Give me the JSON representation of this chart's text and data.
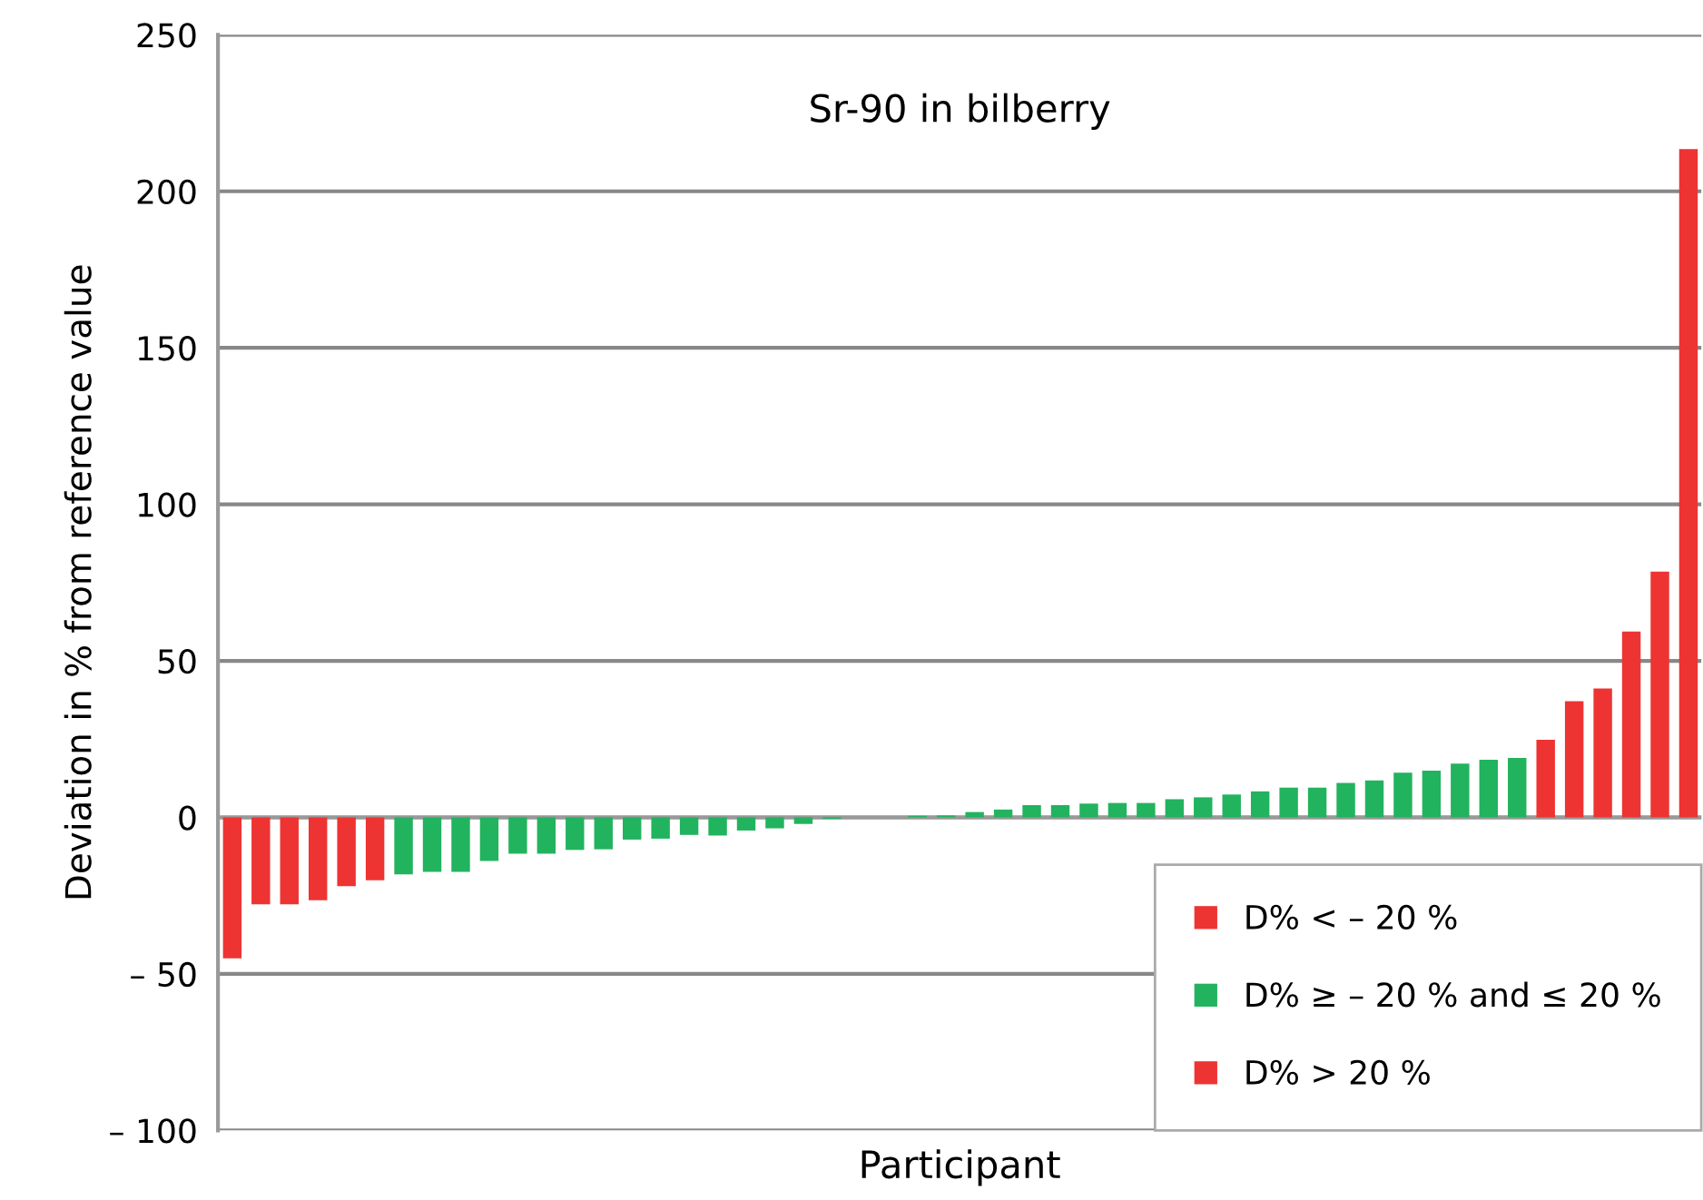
{
  "chart_data": {
    "type": "bar",
    "title": "Sr-90 in bilberry",
    "xlabel": "Participant",
    "ylabel": "Deviation in % from reference value",
    "categories": [
      null,
      null,
      null,
      null,
      null,
      null,
      null,
      null,
      null,
      null,
      null,
      null,
      null,
      null,
      null,
      null,
      null,
      null,
      null,
      null,
      null,
      null,
      null,
      null,
      null,
      null,
      null,
      null,
      null,
      null,
      null,
      null,
      null,
      null,
      null,
      null,
      null,
      null,
      null,
      null,
      null,
      null,
      null,
      null,
      null,
      null,
      null,
      null,
      null,
      null,
      null,
      null
    ],
    "series": [
      {
        "name": "D% < – 20 %",
        "color": "#ee3333",
        "values": [
          -45,
          -27.8,
          -27.8,
          -26.5,
          -22,
          -20.1,
          null,
          null,
          null,
          null,
          null,
          null,
          null,
          null,
          null,
          null,
          null,
          null,
          null,
          null,
          null,
          null,
          null,
          null,
          null,
          null,
          null,
          null,
          null,
          null,
          null,
          null,
          null,
          null,
          null,
          null,
          null,
          null,
          null,
          null,
          null,
          null,
          null,
          null,
          null,
          null,
          null,
          null,
          null,
          null,
          null,
          null
        ]
      },
      {
        "name": "D% ≥ – 20 % and ≤ 20 %",
        "color": "#22b35e",
        "values": [
          null,
          null,
          null,
          null,
          null,
          null,
          -18.2,
          -17.4,
          -17.4,
          -13.9,
          -11.6,
          -11.6,
          -10.4,
          -10.2,
          -7.1,
          -6.8,
          -5.6,
          -5.8,
          -4.2,
          -3.5,
          -2.1,
          -0.5,
          0,
          0,
          0.5,
          0.6,
          1.7,
          2.5,
          3.9,
          3.9,
          4.4,
          4.6,
          4.6,
          5.8,
          6.4,
          7.3,
          8.3,
          9.5,
          9.5,
          11,
          11.8,
          14.3,
          14.9,
          17.2,
          18.4,
          19,
          null,
          null,
          null,
          null,
          null,
          null
        ]
      },
      {
        "name": "D% > 20 %",
        "color": "#ee3333",
        "values": [
          null,
          null,
          null,
          null,
          null,
          null,
          null,
          null,
          null,
          null,
          null,
          null,
          null,
          null,
          null,
          null,
          null,
          null,
          null,
          null,
          null,
          null,
          null,
          null,
          null,
          null,
          null,
          null,
          null,
          null,
          null,
          null,
          null,
          null,
          null,
          null,
          null,
          null,
          null,
          null,
          null,
          null,
          null,
          null,
          null,
          null,
          24.8,
          37.1,
          41.2,
          59.4,
          78.5,
          213.5
        ]
      }
    ],
    "ylim": [
      -100,
      250
    ],
    "yticks": [
      {
        "value": -100,
        "label": "– 100"
      },
      {
        "value": -50,
        "label": "– 50"
      },
      0,
      50,
      100,
      150,
      200,
      250
    ],
    "grid": "y",
    "legend": "bottom right"
  }
}
